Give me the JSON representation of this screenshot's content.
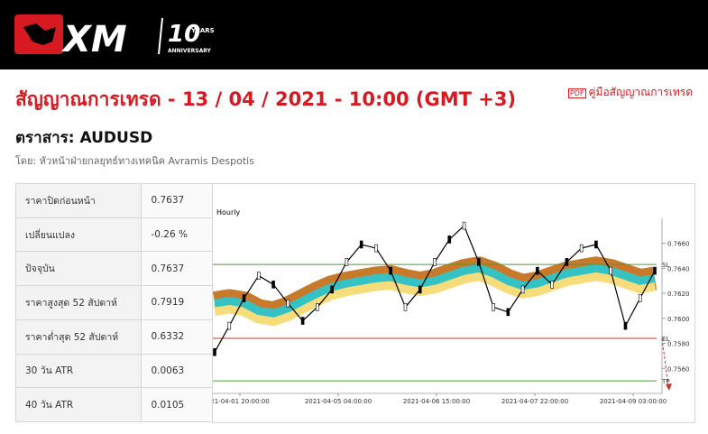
{
  "header": {
    "logo": "XM",
    "badge_number": "10",
    "badge_years": "YEARS",
    "badge_anniversary": "ANNIVERSARY"
  },
  "title": "สัญญาณการเทรด - 13 / 04 / 2021 - 10:00 (GMT +3)",
  "guide_link": "คู่มือสัญญาณการเทรด",
  "instrument": "ตราสาร: AUDUSD",
  "author": "โดย: หัวหน้าฝ่ายกลยุทธ์ทางเทคนิค Avramis Despotis",
  "table": {
    "rows": [
      [
        "ราคาปิดก่อนหน้า",
        "0.7637"
      ],
      [
        "เปลี่ยนแปลง",
        "-0.26 %"
      ],
      [
        "ปัจจุบัน",
        "0.7637"
      ],
      [
        "ราคาสูงสุด 52 สัปดาห์",
        "0.7919"
      ],
      [
        "ราคาต่ำสุด 52 สัปดาห์",
        "0.6332"
      ],
      [
        "30 วัน ATR",
        "0.0063"
      ],
      [
        "40 วัน ATR",
        "0.0105"
      ]
    ]
  },
  "chart": {
    "timeframe": "Hourly",
    "ylim": [
      0.754,
      0.7677
    ],
    "yticks": [
      {
        "value": 0.766,
        "label": "0.7660"
      },
      {
        "value": 0.764,
        "label": "0.7640"
      },
      {
        "value": 0.762,
        "label": "0.7620"
      },
      {
        "value": 0.76,
        "label": "0.7600"
      },
      {
        "value": 0.758,
        "label": "0.7580"
      },
      {
        "value": 0.756,
        "label": "0.7560"
      }
    ],
    "xticks": [
      "21-04-01 20:00:00",
      "2021-04-05 04:00:00",
      "2021-04-06 15:00:00",
      "2021-04-07 22:00:00",
      "2021-04-09 03:00:00"
    ],
    "price": [
      0.7573,
      0.7594,
      0.7616,
      0.7634,
      0.7627,
      0.7612,
      0.7598,
      0.7609,
      0.7623,
      0.7645,
      0.7659,
      0.7656,
      0.7638,
      0.7609,
      0.7623,
      0.7645,
      0.7663,
      0.7674,
      0.7645,
      0.7609,
      0.7605,
      0.7623,
      0.7638,
      0.7627,
      0.7645,
      0.7656,
      0.7659,
      0.7638,
      0.7594,
      0.7616,
      0.7638
    ],
    "average": [
      0.7612,
      0.7614,
      0.7612,
      0.7606,
      0.7604,
      0.7608,
      0.7614,
      0.762,
      0.7625,
      0.7628,
      0.763,
      0.7632,
      0.7633,
      0.763,
      0.7628,
      0.763,
      0.7634,
      0.7638,
      0.764,
      0.7636,
      0.763,
      0.7626,
      0.7628,
      0.7632,
      0.7636,
      0.7638,
      0.764,
      0.7638,
      0.7634,
      0.763,
      0.7632
    ],
    "levels": [
      {
        "label": "SL",
        "value": 0.7643,
        "color": "#4a9a3a"
      },
      {
        "label": "EL",
        "value": 0.7584,
        "color": "#c0392b"
      },
      {
        "label": "TP",
        "value": 0.755,
        "color": "#4a9a3a"
      }
    ]
  }
}
